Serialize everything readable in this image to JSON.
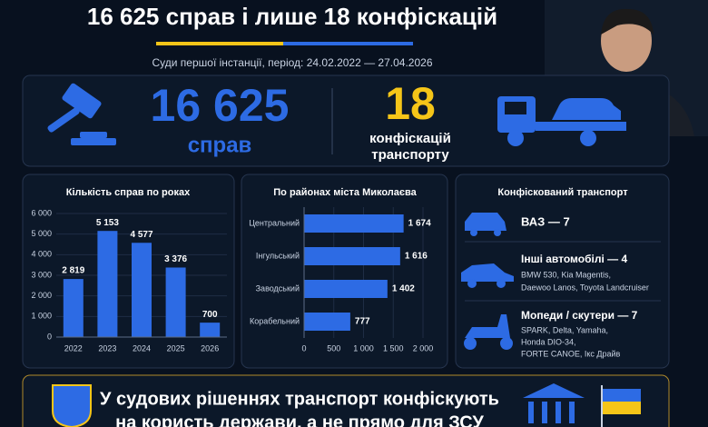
{
  "header": {
    "title": "16 625 справ і лише 18 конфіскацій",
    "subtitle": "Суди першої інстанції, період: 24.02.2022 — 27.04.2026"
  },
  "stats": {
    "cases_number": "16 625",
    "cases_label": "справ",
    "confiscations_number": "18",
    "confiscations_label": [
      "конфіскацій",
      "транспорту"
    ]
  },
  "chart_data": [
    {
      "type": "bar",
      "title": "Кількість справ по роках",
      "categories": [
        "2022",
        "2023",
        "2024",
        "2025",
        "2026"
      ],
      "values": [
        2819,
        5153,
        4577,
        3376,
        700
      ],
      "value_labels": [
        "2 819",
        "5 153",
        "4 577",
        "3 376",
        "700"
      ],
      "color": "#2d6be4",
      "ylim": [
        0,
        6000
      ],
      "yticks": [
        0,
        {
          "value": 1000,
          "label": "1 000"
        },
        {
          "value": 2000,
          "label": "2 000"
        },
        {
          "value": 3000,
          "label": "3 000"
        },
        {
          "value": 4000,
          "label": "4 000"
        },
        {
          "value": 5000,
          "label": "5 000"
        },
        {
          "value": 6000,
          "label": "6 000"
        }
      ],
      "grid": true
    },
    {
      "type": "bar",
      "horizontal": true,
      "title": "По районах міста Миколаєва",
      "categories": [
        "Центральний",
        "Інгульський",
        "Заводський",
        "Корабельний"
      ],
      "values": [
        1674,
        1616,
        1402,
        777
      ],
      "value_labels": [
        "1 674",
        "1 616",
        "1 402",
        "777"
      ],
      "color": "#2d6be4",
      "xlim": [
        0,
        2000
      ],
      "xticks": [
        0,
        500,
        {
          "value": 1000,
          "label": "1 000"
        },
        {
          "value": 1500,
          "label": "1 500"
        },
        {
          "value": 2000,
          "label": "2 000"
        }
      ],
      "grid": true
    }
  ],
  "transport": {
    "title": "Конфіскований транспорт",
    "items": [
      {
        "label": "ВАЗ — 7",
        "details": []
      },
      {
        "label": "Інші автомобілі — 4",
        "details": [
          "BMW 530, Kia Magentis,",
          "Daewoo Lanos, Toyota Landcruiser"
        ]
      },
      {
        "label": "Мопеди / скутери — 7",
        "details": [
          "SPARK, Delta, Yamaha,",
          "Honda DIO-34,",
          "FORTE CANOE, Ікс Драйв"
        ]
      }
    ]
  },
  "banner": {
    "lines": [
      "У судових рішеннях транспорт конфіскують",
      "на користь держави, а не прямо для ЗСУ"
    ]
  }
}
